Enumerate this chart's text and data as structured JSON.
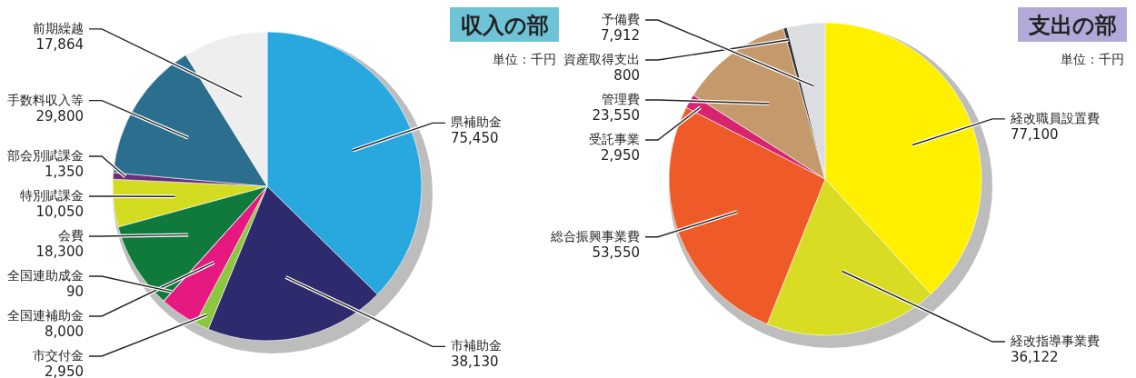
{
  "chart_data": [
    {
      "type": "pie",
      "title": "収入の部",
      "subtitle": "単位：千円",
      "categories": [
        "県補助金",
        "市補助金",
        "市交付金",
        "全国連補助金",
        "全国連助成金",
        "会費",
        "特別賦課金",
        "部会別賦課金",
        "手数料収入等",
        "前期繰越"
      ],
      "values": [
        75450,
        38130,
        2950,
        8000,
        90,
        18300,
        10050,
        1350,
        29800,
        17864
      ],
      "value_labels": [
        "75,450",
        "38,130",
        "2,950",
        "8,000",
        "90",
        "18,300",
        "10,050",
        "1,350",
        "29,800",
        "17,864"
      ],
      "colors": [
        "#29a8e0",
        "#2e2a6e",
        "#8dc63f",
        "#e5197f",
        "#b8b8b8",
        "#0f7a3c",
        "#d4dc21",
        "#6b2e7a",
        "#2c6e8e",
        "#eeeeee"
      ]
    },
    {
      "type": "pie",
      "title": "支出の部",
      "subtitle": "単位：千円",
      "categories": [
        "経改職員設置費",
        "経改指導事業費",
        "総合振興事業費",
        "受託事業",
        "管理費",
        "資産取得支出",
        "予備費"
      ],
      "values": [
        77100,
        36122,
        53550,
        2950,
        23550,
        800,
        7912
      ],
      "value_labels": [
        "77,100",
        "36,122",
        "53,550",
        "2,950",
        "23,550",
        "800",
        "7,912"
      ],
      "colors": [
        "#fff000",
        "#d8dc22",
        "#ee5a28",
        "#d6246e",
        "#c49a6c",
        "#333333",
        "#dcdde0"
      ]
    }
  ]
}
